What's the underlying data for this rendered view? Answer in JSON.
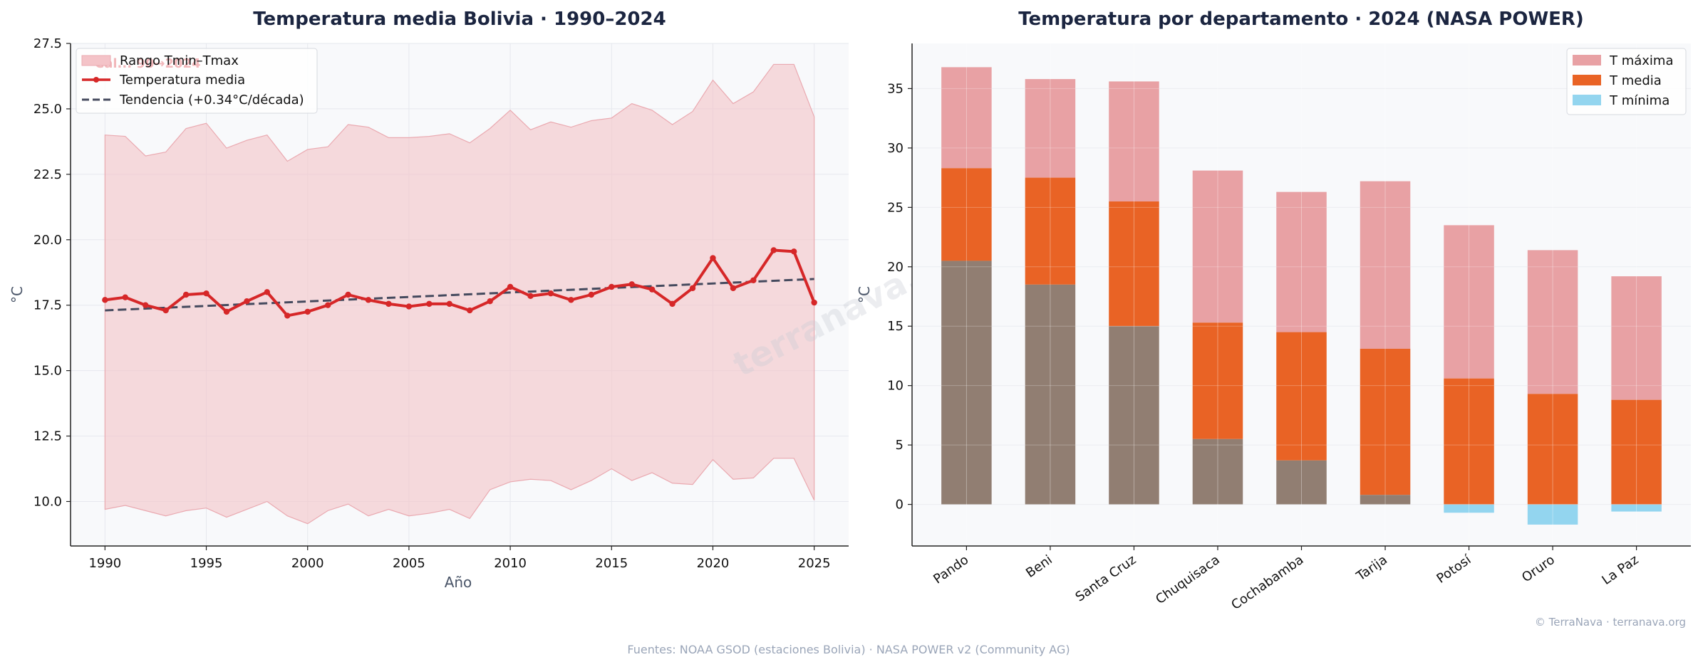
{
  "chart_data": [
    {
      "type": "line",
      "title": "Temperatura media Bolivia · 1990–2024",
      "xlabel": "Año",
      "ylabel": "°C",
      "xlim": [
        1988.3,
        2026.7
      ],
      "ylim": [
        8.3,
        27.5
      ],
      "xticks": [
        "1990",
        "1995",
        "2000",
        "2005",
        "2010",
        "2015",
        "2020",
        "2025"
      ],
      "yticks": [
        "10.0",
        "12.5",
        "15.0",
        "17.5",
        "20.0",
        "22.5",
        "25.0",
        "27.5"
      ],
      "grid": true,
      "legend_position": "top-left",
      "faint_note": "Cal... 90→2024",
      "x": [
        1990,
        1991,
        1992,
        1993,
        1994,
        1995,
        1996,
        1997,
        1998,
        1999,
        2000,
        2001,
        2002,
        2003,
        2004,
        2005,
        2006,
        2007,
        2008,
        2009,
        2010,
        2011,
        2012,
        2013,
        2014,
        2015,
        2016,
        2017,
        2018,
        2019,
        2020,
        2021,
        2022,
        2023,
        2024,
        2025
      ],
      "series": [
        {
          "name": "Temperatura media",
          "values": [
            17.7,
            17.8,
            17.5,
            17.3,
            17.9,
            17.95,
            17.25,
            17.65,
            18.0,
            17.1,
            17.25,
            17.5,
            17.9,
            17.7,
            17.55,
            17.45,
            17.55,
            17.55,
            17.3,
            17.65,
            18.2,
            17.85,
            17.95,
            17.7,
            17.9,
            18.2,
            18.3,
            18.1,
            17.55,
            18.15,
            19.3,
            18.15,
            18.45,
            19.6,
            19.55,
            17.6
          ]
        },
        {
          "name": "Tendencia (+0.34°C/década)",
          "start": [
            1990,
            17.3
          ],
          "end": [
            2025,
            18.5
          ]
        },
        {
          "name": "Rango Tmin–Tmax",
          "upper": [
            24.0,
            23.95,
            23.2,
            23.35,
            24.25,
            24.45,
            23.5,
            23.8,
            24.0,
            23.0,
            23.45,
            23.55,
            24.4,
            24.3,
            23.9,
            23.9,
            23.95,
            24.05,
            23.7,
            24.25,
            24.95,
            24.2,
            24.5,
            24.3,
            24.55,
            24.65,
            25.2,
            24.95,
            24.4,
            24.9,
            26.1,
            25.2,
            25.65,
            26.7,
            26.7,
            24.7
          ],
          "lower": [
            9.7,
            9.85,
            9.65,
            9.45,
            9.65,
            9.75,
            9.4,
            9.7,
            10.0,
            9.45,
            9.15,
            9.65,
            9.9,
            9.45,
            9.7,
            9.45,
            9.55,
            9.7,
            9.35,
            10.45,
            10.75,
            10.85,
            10.8,
            10.45,
            10.8,
            11.25,
            10.8,
            11.1,
            10.7,
            10.65,
            11.6,
            10.85,
            10.9,
            11.65,
            11.65,
            10.05
          ]
        }
      ],
      "colors": {
        "mean": "#d62728",
        "trend": "#454a5e",
        "band": "#f4c3c8"
      }
    },
    {
      "type": "bar",
      "title": "Temperatura por departamento · 2024 (NASA POWER)",
      "ylabel": "°C",
      "ylim": [
        -3.5,
        38.8
      ],
      "yticks": [
        "0",
        "5",
        "10",
        "15",
        "20",
        "25",
        "30",
        "35"
      ],
      "grid": true,
      "legend_position": "top-right",
      "categories": [
        "Pando",
        "Beni",
        "Santa Cruz",
        "Chuquisaca",
        "Cochabamba",
        "Tarija",
        "Potosí",
        "Oruro",
        "La Paz"
      ],
      "series": [
        {
          "name": "T máxima",
          "values": [
            36.8,
            35.8,
            35.6,
            28.1,
            26.3,
            27.2,
            23.5,
            21.4,
            19.2
          ]
        },
        {
          "name": "T media",
          "values": [
            28.3,
            27.5,
            25.5,
            15.3,
            14.5,
            13.1,
            10.6,
            9.3,
            8.8
          ]
        },
        {
          "name": "T mínima",
          "values": [
            20.5,
            18.5,
            15.0,
            5.5,
            3.7,
            0.8,
            -0.7,
            -1.7,
            -0.6
          ]
        }
      ],
      "colors": {
        "max": "#e8a1a4",
        "mean": "#e96325",
        "min": "#93d5ef",
        "overlap": "#917e72"
      }
    }
  ],
  "footer": {
    "sources": "Fuentes: NOAA GSOD (estaciones Bolivia) · NASA POWER v2 (Community AG)",
    "copyright": "© TerraNava · terranava.org",
    "watermark": "terranava.org"
  }
}
